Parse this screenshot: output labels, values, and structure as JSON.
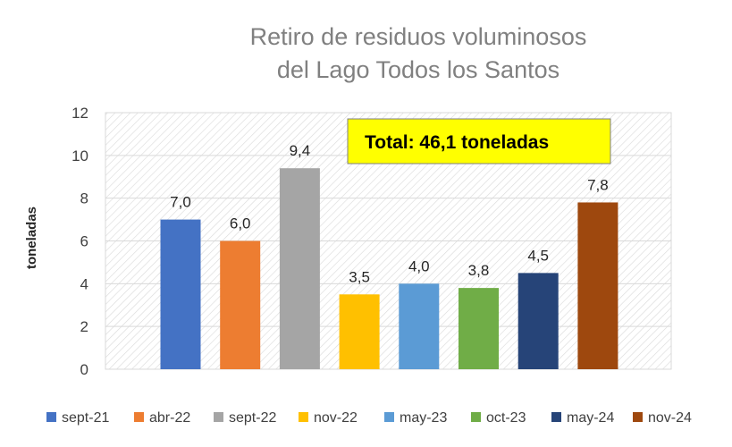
{
  "chart_data": {
    "type": "bar",
    "title": [
      "Retiro de residuos voluminosos",
      "del Lago Todos los Santos"
    ],
    "ylabel": "toneladas",
    "ylim": [
      0,
      12
    ],
    "yticks": [
      0,
      2,
      4,
      6,
      8,
      10,
      12
    ],
    "grid": true,
    "legend_position": "bottom",
    "annotation": "Total: 46,1 toneladas",
    "annotation_color": "#ffff00",
    "categories": [
      "sept-21",
      "abr-22",
      "sept-22",
      "nov-22",
      "may-23",
      "oct-23",
      "may-24",
      "nov-24"
    ],
    "values": [
      7.0,
      6.0,
      9.4,
      3.5,
      4.0,
      3.8,
      4.5,
      7.8
    ],
    "data_labels": [
      "7,0",
      "6,0",
      "9,4",
      "3,5",
      "4,0",
      "3,8",
      "4,5",
      "7,8"
    ],
    "colors": [
      "#4472c4",
      "#ed7d31",
      "#a5a5a5",
      "#ffc000",
      "#5b9bd5",
      "#70ad47",
      "#264478",
      "#9e480e"
    ]
  }
}
